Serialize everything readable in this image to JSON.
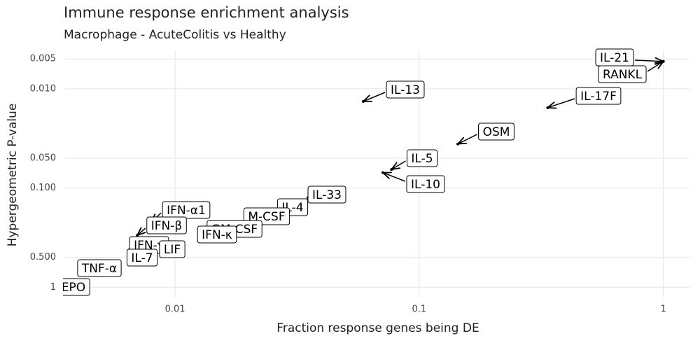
{
  "chart_data": {
    "type": "scatter",
    "title": "Immune response enrichment analysis",
    "subtitle": "Macrophage - AcuteColitis vs Healthy",
    "x_label": "Fraction response genes being DE",
    "y_label": "Hypergeometric P-value",
    "log_x": true,
    "log_y": true,
    "grid": true,
    "color": "#000000",
    "labels": [
      "IL-21",
      "RANKL",
      "IL-13",
      "IL-17F",
      "OSM",
      "IL-5",
      "IL-10",
      "IL-33",
      "IL-4",
      "M-CSF",
      "GM-CSF",
      "IFN-κ",
      "IFN-α1",
      "IFN-β",
      "IFN-γ",
      "LIF",
      "IL-7",
      "TNF-α",
      "EPO"
    ],
    "x": [
      1.0,
      1.0,
      0.059,
      0.336,
      0.144,
      0.077,
      0.071,
      0.035,
      0.03,
      0.025,
      0.02,
      0.015,
      0.008,
      0.007,
      0.0065,
      0.008,
      0.007,
      0.005,
      0.004
    ],
    "values": [
      0.0053,
      0.0053,
      0.0134,
      0.0155,
      0.036,
      0.065,
      0.07,
      0.125,
      0.14,
      0.2,
      0.25,
      0.28,
      0.22,
      0.3,
      0.42,
      0.45,
      0.5,
      0.75,
      1
    ],
    "xlim": [
      0.00352,
      1.28
    ],
    "ylim": [
      1.27,
      0.0041
    ],
    "xticks": [
      0.01,
      0.1,
      1
    ],
    "yticks": [
      {
        "value": 0.005,
        "label": "0.005"
      },
      {
        "value": 0.01,
        "label": "0.010"
      },
      {
        "value": 0.05,
        "label": "0.050"
      },
      {
        "value": 0.1,
        "label": "0.100"
      },
      {
        "value": 0.5,
        "label": "0.500"
      },
      1
    ]
  }
}
